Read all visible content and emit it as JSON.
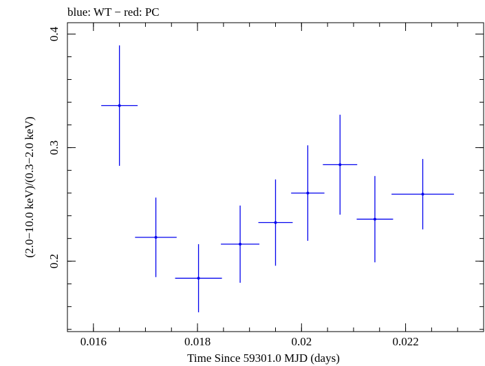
{
  "chart_data": {
    "type": "scatter",
    "title": "blue: WT − red: PC",
    "xlabel": "Time Since 59301.0 MJD (days)",
    "ylabel": "(2.0−10.0 keV)/(0.3−2.0 keV)",
    "xlim": [
      0.0155,
      0.0235
    ],
    "ylim": [
      0.138,
      0.41
    ],
    "xticks": [
      {
        "value": 0.016,
        "label": "0.016"
      },
      {
        "value": 0.018,
        "label": "0.018"
      },
      {
        "value": 0.02,
        "label": "0.02"
      },
      {
        "value": 0.022,
        "label": "0.022"
      }
    ],
    "yticks": [
      {
        "value": 0.2,
        "label": "0.2"
      },
      {
        "value": 0.3,
        "label": "0.3"
      },
      {
        "value": 0.4,
        "label": "0.4"
      }
    ],
    "x_minor_step": 0.0005,
    "y_minor_step": 0.02,
    "grid": false,
    "series": [
      {
        "color": "#0000ee",
        "points": [
          {
            "x": 0.0165,
            "xerr": 0.00035,
            "y": 0.337,
            "yerr_low": 0.053,
            "yerr_high": 0.053
          },
          {
            "x": 0.0172,
            "xerr": 0.0004,
            "y": 0.221,
            "yerr_low": 0.035,
            "yerr_high": 0.035
          },
          {
            "x": 0.01802,
            "xerr": 0.00045,
            "y": 0.185,
            "yerr_low": 0.03,
            "yerr_high": 0.03
          },
          {
            "x": 0.01882,
            "xerr": 0.00037,
            "y": 0.215,
            "yerr_low": 0.034,
            "yerr_high": 0.034
          },
          {
            "x": 0.0195,
            "xerr": 0.00033,
            "y": 0.234,
            "yerr_low": 0.038,
            "yerr_high": 0.038
          },
          {
            "x": 0.02012,
            "xerr": 0.00032,
            "y": 0.26,
            "yerr_low": 0.042,
            "yerr_high": 0.042
          },
          {
            "x": 0.02074,
            "xerr": 0.00033,
            "y": 0.285,
            "yerr_low": 0.044,
            "yerr_high": 0.044
          },
          {
            "x": 0.02141,
            "xerr": 0.00035,
            "y": 0.237,
            "yerr_low": 0.038,
            "yerr_high": 0.038
          },
          {
            "x": 0.02233,
            "xerr": 0.0006,
            "y": 0.259,
            "yerr_low": 0.031,
            "yerr_high": 0.031
          }
        ]
      }
    ]
  }
}
